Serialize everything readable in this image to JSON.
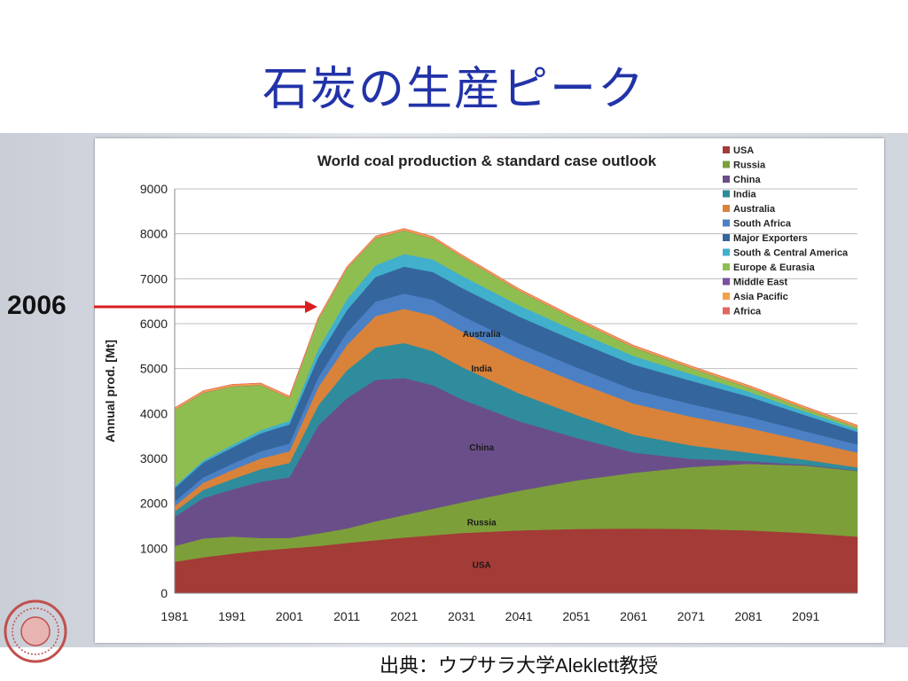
{
  "slide": {
    "title": "石炭の生産ピーク",
    "marker_label": "2006",
    "source": "出典：ウプサラ大学Aleklett教授"
  },
  "chart_data": {
    "type": "area",
    "stacked": true,
    "title": "World coal production & standard case outlook",
    "xlabel": "",
    "ylabel": "Annual prod. [Mt]",
    "xlim": [
      1981,
      2100
    ],
    "ylim": [
      0,
      9000
    ],
    "x_ticks": [
      1981,
      1991,
      2001,
      2011,
      2021,
      2031,
      2041,
      2051,
      2061,
      2071,
      2081,
      2091
    ],
    "y_ticks": [
      0,
      1000,
      2000,
      3000,
      4000,
      5000,
      6000,
      7000,
      8000,
      9000
    ],
    "grid": "horizontal",
    "legend_position": "right",
    "annotation": {
      "x": 2006,
      "label": "2006"
    },
    "x": [
      1981,
      1986,
      1991,
      1996,
      2001,
      2006,
      2011,
      2016,
      2021,
      2026,
      2031,
      2041,
      2051,
      2061,
      2071,
      2081,
      2091,
      2100
    ],
    "series": [
      {
        "name": "USA",
        "color": "#a33b36",
        "label": "USA",
        "values": [
          700,
          800,
          880,
          950,
          1000,
          1050,
          1120,
          1180,
          1240,
          1290,
          1340,
          1400,
          1430,
          1440,
          1430,
          1400,
          1340,
          1260
        ]
      },
      {
        "name": "Russia",
        "color": "#7d9f3a",
        "label": "Russia",
        "values": [
          350,
          420,
          380,
          280,
          230,
          280,
          320,
          420,
          500,
          590,
          680,
          880,
          1080,
          1240,
          1380,
          1480,
          1500,
          1460
        ]
      },
      {
        "name": "China",
        "color": "#6a4e8a",
        "label": "China",
        "values": [
          650,
          900,
          1050,
          1250,
          1350,
          2400,
          2900,
          3150,
          3050,
          2750,
          2300,
          1550,
          950,
          450,
          180,
          60,
          20,
          10
        ]
      },
      {
        "name": "India",
        "color": "#2f8c9c",
        "label": "India",
        "values": [
          120,
          180,
          230,
          280,
          320,
          450,
          620,
          720,
          780,
          760,
          720,
          620,
          510,
          400,
          300,
          190,
          110,
          70
        ]
      },
      {
        "name": "Australia",
        "color": "#d9823a",
        "label": "Australia",
        "values": [
          120,
          160,
          200,
          240,
          260,
          400,
          560,
          700,
          760,
          790,
          790,
          770,
          730,
          690,
          640,
          550,
          420,
          330
        ]
      },
      {
        "name": "South Africa",
        "color": "#4b81c4",
        "label": "",
        "values": [
          100,
          120,
          140,
          160,
          170,
          220,
          280,
          320,
          340,
          350,
          350,
          340,
          330,
          310,
          280,
          250,
          210,
          180
        ]
      },
      {
        "name": "Major Exporters",
        "color": "#35659d",
        "label": "",
        "values": [
          300,
          330,
          360,
          400,
          430,
          450,
          500,
          550,
          600,
          620,
          620,
          600,
          580,
          560,
          520,
          450,
          360,
          280
        ]
      },
      {
        "name": "South & Central America",
        "color": "#40b0cc",
        "label": "",
        "values": [
          40,
          50,
          60,
          70,
          80,
          180,
          240,
          260,
          280,
          280,
          270,
          250,
          220,
          190,
          150,
          110,
          80,
          60
        ]
      },
      {
        "name": "Europe & Eurasia",
        "color": "#8fbe50",
        "label": "",
        "values": [
          1700,
          1500,
          1300,
          1000,
          500,
          650,
          680,
          600,
          520,
          460,
          420,
          320,
          250,
          190,
          130,
          90,
          60,
          40
        ]
      },
      {
        "name": "Middle East",
        "color": "#7b4fa2",
        "label": "",
        "values": [
          5,
          5,
          5,
          5,
          5,
          5,
          5,
          5,
          5,
          5,
          5,
          5,
          5,
          5,
          5,
          5,
          5,
          5
        ]
      },
      {
        "name": "Asia Pacific",
        "color": "#f3a04a",
        "label": "",
        "values": [
          40,
          40,
          40,
          40,
          40,
          40,
          40,
          40,
          40,
          40,
          40,
          40,
          40,
          40,
          40,
          40,
          40,
          40
        ]
      },
      {
        "name": "Africa",
        "color": "#e06860",
        "label": "",
        "values": [
          5,
          5,
          5,
          5,
          5,
          5,
          5,
          5,
          5,
          5,
          5,
          5,
          5,
          5,
          5,
          5,
          5,
          5
        ]
      }
    ]
  }
}
